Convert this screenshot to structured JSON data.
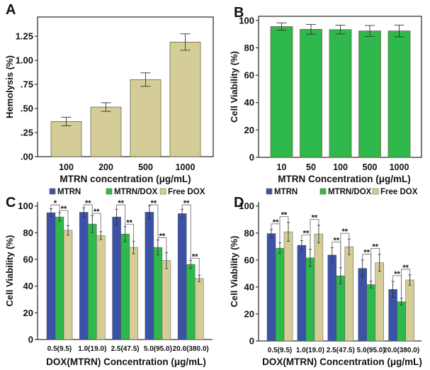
{
  "colors": {
    "tan": "#d4cd98",
    "green": "#2fb84c",
    "blue": "#3a52a8",
    "axis": "#333333",
    "bracket": "#777777"
  },
  "chart_data": [
    {
      "panel": "A",
      "type": "bar",
      "title": "",
      "xlabel": "MTRN concentration (μg/mL)",
      "ylabel": "Hemolysis (%)",
      "categories": [
        "100",
        "200",
        "500",
        "1000"
      ],
      "values": [
        0.365,
        0.515,
        0.8,
        1.19
      ],
      "errors": [
        0.045,
        0.045,
        0.07,
        0.085
      ],
      "ylim": [
        0,
        1.45
      ],
      "yticks": [
        0,
        0.25,
        0.5,
        0.75,
        1.0,
        1.25
      ],
      "ytick_labels": [
        ".00",
        ".25",
        ".50",
        ".75",
        "1.00",
        "1.25"
      ],
      "color_key": "tan"
    },
    {
      "panel": "B",
      "type": "bar",
      "title": "",
      "xlabel": "MTRN Concentration (μg/mL)",
      "ylabel": "Cell Viability (%)",
      "categories": [
        "10",
        "50",
        "100",
        "500",
        "1000"
      ],
      "values": [
        95.5,
        93.5,
        93.3,
        92.3,
        92.3
      ],
      "errors": [
        2.7,
        3.6,
        3.2,
        4.0,
        4.3
      ],
      "ylim": [
        0,
        103
      ],
      "yticks": [
        0,
        20,
        40,
        60,
        80,
        100
      ],
      "ytick_labels": [
        "0",
        "20",
        "40",
        "60",
        "80",
        "100"
      ],
      "color_key": "green"
    },
    {
      "panel": "C",
      "type": "bar",
      "title": "",
      "xlabel": "DOX(MTRN) Concentration (μg/mL)",
      "ylabel": "Cell Viability (%)",
      "categories": [
        "0.5(9.5)",
        "1.0(19.0)",
        "2.5(47.5)",
        "5.0(95.0)",
        "20.0(380.0)"
      ],
      "series": [
        {
          "name": "MTRN",
          "color_key": "blue",
          "values": [
            95.0,
            95.3,
            91.8,
            95.4,
            94.3
          ],
          "errors": [
            3.0,
            3.4,
            5.8,
            5.0,
            3.3
          ]
        },
        {
          "name": "MTRN/DOX",
          "color_key": "green",
          "values": [
            91.8,
            86.5,
            79.0,
            69.0,
            56.3
          ],
          "errors": [
            3.2,
            6.3,
            5.8,
            5.6,
            3.0
          ]
        },
        {
          "name": "Free DOX",
          "color_key": "tan",
          "values": [
            81.8,
            77.8,
            69.0,
            59.2,
            45.7
          ],
          "errors": [
            3.6,
            3.0,
            4.7,
            6.0,
            2.5
          ]
        }
      ],
      "significance": [
        {
          "group": 0,
          "pairs": [
            [
              "MTRN",
              "MTRN/DOX",
              "*"
            ],
            [
              "MTRN/DOX",
              "Free DOX",
              "**"
            ]
          ]
        },
        {
          "group": 1,
          "pairs": [
            [
              "MTRN",
              "MTRN/DOX",
              "**"
            ],
            [
              "MTRN/DOX",
              "Free DOX",
              "**"
            ]
          ]
        },
        {
          "group": 2,
          "pairs": [
            [
              "MTRN",
              "MTRN/DOX",
              "**"
            ],
            [
              "MTRN/DOX",
              "Free DOX",
              "**"
            ]
          ]
        },
        {
          "group": 3,
          "pairs": [
            [
              "MTRN",
              "MTRN/DOX",
              "**"
            ],
            [
              "MTRN/DOX",
              "Free DOX",
              "**"
            ]
          ]
        },
        {
          "group": 4,
          "pairs": [
            [
              "MTRN",
              "MTRN/DOX",
              "**"
            ],
            [
              "MTRN/DOX",
              "Free DOX",
              "**"
            ]
          ]
        }
      ],
      "ylim": [
        0,
        103
      ],
      "yticks": [
        0,
        20,
        40,
        60,
        80,
        100
      ],
      "ytick_labels": [
        "0",
        "20",
        "40",
        "60",
        "80",
        "100"
      ],
      "legend": [
        "MTRN",
        "MTRN/DOX",
        "Free DOX"
      ],
      "legend_position": "top"
    },
    {
      "panel": "D",
      "type": "bar",
      "title": "",
      "xlabel": "DOX(MTRN) Concentration (μg/mL)",
      "ylabel": "Cell Viability (%)",
      "categories": [
        "0.5(9.5)",
        "1.0(19.0)",
        "2.5(47.5)",
        "5.0(95.0)",
        "20.0(380.0)"
      ],
      "series": [
        {
          "name": "MTRN",
          "color_key": "blue",
          "values": [
            79.6,
            70.9,
            63.7,
            53.8,
            38.2
          ],
          "errors": [
            3.0,
            3.5,
            5.5,
            6.3,
            6.0
          ]
        },
        {
          "name": "MTRN/DOX",
          "color_key": "green",
          "values": [
            68.8,
            61.6,
            48.3,
            41.8,
            29.1
          ],
          "errors": [
            4.0,
            6.5,
            6.0,
            2.5,
            2.5
          ]
        },
        {
          "name": "Free DOX",
          "color_key": "tan",
          "values": [
            80.9,
            79.3,
            69.8,
            58.0,
            45.2
          ],
          "errors": [
            7.0,
            6.6,
            5.8,
            6.4,
            3.8
          ]
        }
      ],
      "significance": [
        {
          "group": 0,
          "pairs": [
            [
              "MTRN",
              "MTRN/DOX",
              "**"
            ],
            [
              "MTRN/DOX",
              "Free DOX",
              "**"
            ]
          ]
        },
        {
          "group": 1,
          "pairs": [
            [
              "MTRN",
              "MTRN/DOX",
              "**"
            ],
            [
              "MTRN/DOX",
              "Free DOX",
              "**"
            ]
          ]
        },
        {
          "group": 2,
          "pairs": [
            [
              "MTRN",
              "MTRN/DOX",
              "**"
            ],
            [
              "MTRN/DOX",
              "Free DOX",
              "**"
            ]
          ]
        },
        {
          "group": 3,
          "pairs": [
            [
              "MTRN",
              "MTRN/DOX",
              "**"
            ],
            [
              "MTRN/DOX",
              "Free DOX",
              "**"
            ]
          ]
        },
        {
          "group": 4,
          "pairs": [
            [
              "MTRN",
              "MTRN/DOX",
              "**"
            ],
            [
              "MTRN/DOX",
              "Free DOX",
              "**"
            ]
          ]
        }
      ],
      "ylim": [
        0,
        103
      ],
      "yticks": [
        0,
        20,
        40,
        60,
        80,
        100
      ],
      "ytick_labels": [
        "0",
        "20",
        "40",
        "60",
        "80",
        "100"
      ],
      "legend": [
        "MTRN",
        "MTRN/DOX",
        "Free DOX"
      ],
      "legend_position": "top"
    }
  ]
}
